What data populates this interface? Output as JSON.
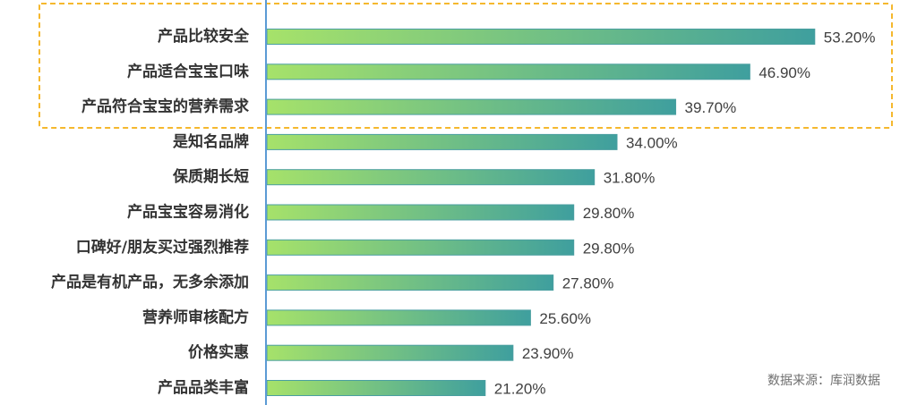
{
  "chart_data": {
    "type": "bar",
    "orientation": "horizontal",
    "categories": [
      "产品比较安全",
      "产品适合宝宝口味",
      "产品符合宝宝的营养需求",
      "是知名品牌",
      "保质期长短",
      "产品宝宝容易消化",
      "口碑好/朋友买过强烈推荐",
      "产品是有机产品，无多余添加",
      "营养师审核配方",
      "价格实惠",
      "产品品类丰富"
    ],
    "values": [
      53.2,
      46.9,
      39.7,
      34.0,
      31.8,
      29.8,
      29.8,
      27.8,
      25.6,
      23.9,
      21.2
    ],
    "value_labels": [
      "53.20%",
      "46.90%",
      "39.70%",
      "34.00%",
      "31.80%",
      "29.80%",
      "29.80%",
      "27.80%",
      "25.60%",
      "23.90%",
      "21.20%"
    ],
    "xlim": [
      0,
      60
    ],
    "highlighted_categories": [
      "产品比较安全",
      "产品适合宝宝口味",
      "产品符合宝宝的营养需求"
    ],
    "grid": false,
    "legend": "none",
    "colors": {
      "bar_start": "#a6e26a",
      "bar_end": "#3f9f9e",
      "bar_border": "#4a9fa0",
      "axis": "#5b9bd5",
      "highlight_border": "#f5b82e"
    }
  },
  "source_text": "数据来源：库润数据"
}
